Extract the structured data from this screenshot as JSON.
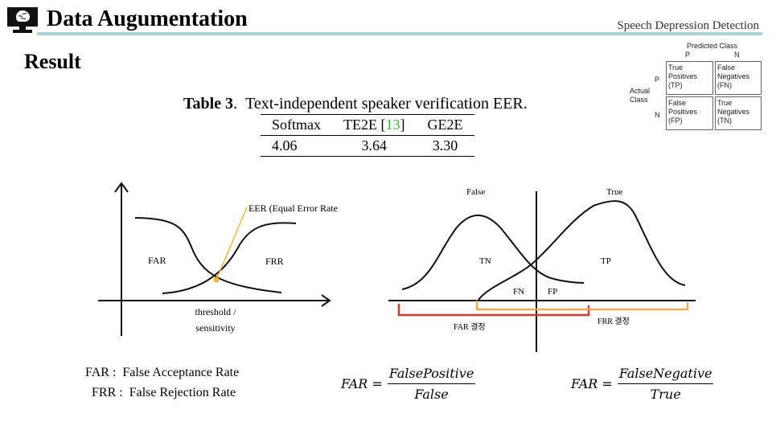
{
  "header": {
    "title": "Data Augumentation",
    "subtitle": "Speech Depression Detection",
    "colors": {
      "rule": "#a7d3d9"
    }
  },
  "section_title": "Result",
  "table": {
    "label": "Table 3",
    "caption": "Text-independent speaker verification EER.",
    "columns": [
      "Softmax",
      "TE2E",
      "GE2E"
    ],
    "citation": "13",
    "values": [
      "4.06",
      "3.64",
      "3.30"
    ]
  },
  "confusion_matrix": {
    "predicted_label": "Predicted Class",
    "actual_label": [
      "Actual",
      "Class"
    ],
    "col_heads": [
      "P",
      "N"
    ],
    "row_heads": [
      "P",
      "N"
    ],
    "cells": [
      [
        "True",
        "Positives",
        "(TP)"
      ],
      [
        "False",
        "Negatives",
        "(FN)"
      ],
      [
        "False",
        "Positives",
        "(FP)"
      ],
      [
        "True",
        "Negatives",
        "(TN)"
      ]
    ]
  },
  "left_diagram": {
    "eer_label": "EER (Equal Error Rate)",
    "far_label": "FAR",
    "frr_label": "FRR",
    "xaxis_label": [
      "threshold /",
      "sensitivity"
    ],
    "colors": {
      "eer_line": "#f2b632",
      "eer_dot": "#f2b632"
    }
  },
  "right_diagram": {
    "false_label": "False",
    "true_label": "True",
    "tn_label": "TN",
    "tp_label": "TP",
    "fn_label": "FN",
    "fp_label": "FP",
    "far_decision": "FAR 결정",
    "frr_decision": "FRR 결정",
    "colors": {
      "far_bracket": "#d23a2a",
      "frr_bracket": "#f0a855"
    }
  },
  "definitions": {
    "far": {
      "abbr": "FAR :",
      "text": "False Acceptance Rate"
    },
    "frr": {
      "abbr": "FRR :",
      "text": "False Rejection Rate"
    }
  },
  "formulas": {
    "far1": {
      "lhs": "FAR =",
      "num": "FalsePositive",
      "den": "False"
    },
    "far2": {
      "lhs": "FAR =",
      "num": "FalseNegative",
      "den": "True"
    }
  }
}
